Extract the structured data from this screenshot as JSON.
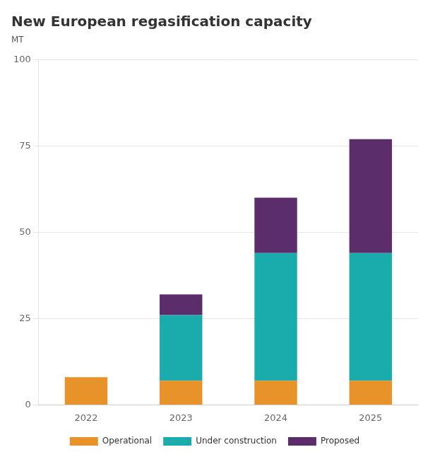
{
  "chart_data": {
    "type": "bar",
    "title": "New European regasification capacity",
    "subtitle": "MT",
    "categories": [
      "2022",
      "2023",
      "2024",
      "2025"
    ],
    "series": [
      {
        "name": "Operational",
        "color": "#E8922A",
        "values": [
          8,
          7,
          7,
          7
        ]
      },
      {
        "name": "Under construction",
        "color": "#1AACAC",
        "values": [
          0,
          19,
          37,
          37
        ]
      },
      {
        "name": "Proposed",
        "color": "#5B2D6B",
        "values": [
          0,
          6,
          16,
          33
        ]
      }
    ],
    "stacked": true,
    "ylim": [
      0,
      100
    ],
    "yticks": [
      0,
      25,
      50,
      75,
      100
    ],
    "grid": true,
    "legend": "bottom"
  }
}
